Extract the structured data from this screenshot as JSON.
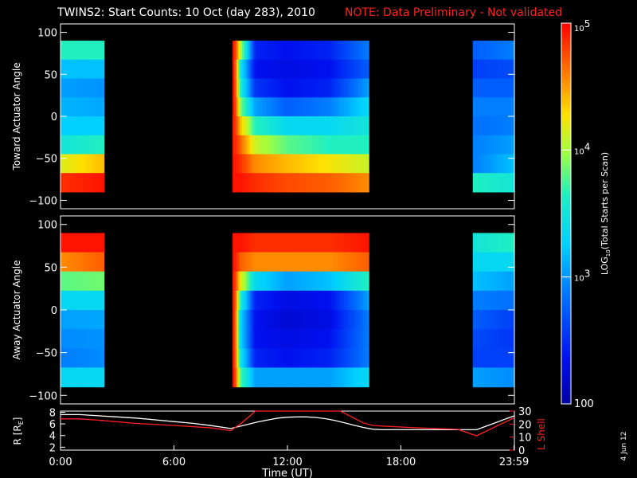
{
  "header": {
    "title": "TWINS2: Start Counts: 10 Oct (day 283), 2010",
    "note": "NOTE: Data Preliminary - Not validated"
  },
  "footer": {
    "date_stamp": "4 Jun 12"
  },
  "chart_data": [
    {
      "type": "heatmap",
      "ylabel": "Toward Actuator Angle",
      "ylim": [
        -110,
        110
      ],
      "yticks": [
        100,
        50,
        0,
        -50,
        -100
      ],
      "data_segments_hours": [
        [
          0,
          2.3
        ],
        [
          9.1,
          16.3
        ],
        [
          21.8,
          24
        ]
      ],
      "profiles": [
        {
          "t": 0.0,
          "v": [
            0.55,
            0.4,
            0.35,
            0.38,
            0.42,
            0.5,
            0.72,
            0.95
          ]
        },
        {
          "t": 2.3,
          "v": [
            0.55,
            0.4,
            0.33,
            0.36,
            0.42,
            0.55,
            0.8,
            0.98
          ]
        },
        {
          "t": 9.2,
          "v": [
            0.98,
            0.98,
            0.98,
            0.98,
            0.97,
            0.97,
            0.98,
            0.98
          ]
        },
        {
          "t": 9.5,
          "v": [
            0.7,
            0.5,
            0.55,
            0.65,
            0.8,
            0.9,
            0.95,
            0.98
          ]
        },
        {
          "t": 10.3,
          "v": [
            0.15,
            0.12,
            0.18,
            0.35,
            0.55,
            0.7,
            0.85,
            0.95
          ]
        },
        {
          "t": 12.0,
          "v": [
            0.12,
            0.1,
            0.12,
            0.25,
            0.45,
            0.6,
            0.8,
            0.92
          ]
        },
        {
          "t": 14.2,
          "v": [
            0.15,
            0.12,
            0.15,
            0.3,
            0.45,
            0.55,
            0.75,
            0.9
          ]
        },
        {
          "t": 16.3,
          "v": [
            0.3,
            0.25,
            0.35,
            0.45,
            0.5,
            0.55,
            0.7,
            0.85
          ]
        },
        {
          "t": 21.8,
          "v": [
            0.25,
            0.2,
            0.25,
            0.3,
            0.28,
            0.3,
            0.3,
            0.55
          ]
        },
        {
          "t": 24.0,
          "v": [
            0.3,
            0.22,
            0.25,
            0.3,
            0.3,
            0.35,
            0.4,
            0.5
          ]
        }
      ]
    },
    {
      "type": "heatmap",
      "ylabel": "Away Actuator Angle",
      "ylim": [
        -110,
        110
      ],
      "yticks": [
        100,
        50,
        0,
        -50,
        -100
      ],
      "data_segments_hours": [
        [
          0,
          2.3
        ],
        [
          9.1,
          16.3
        ],
        [
          21.8,
          24
        ]
      ],
      "profiles": [
        {
          "t": 0.0,
          "v": [
            0.98,
            0.85,
            0.6,
            0.45,
            0.35,
            0.32,
            0.3,
            0.45
          ]
        },
        {
          "t": 2.3,
          "v": [
            0.98,
            0.9,
            0.62,
            0.45,
            0.36,
            0.33,
            0.32,
            0.45
          ]
        },
        {
          "t": 9.2,
          "v": [
            0.98,
            0.98,
            0.97,
            0.97,
            0.97,
            0.97,
            0.97,
            0.98
          ]
        },
        {
          "t": 9.5,
          "v": [
            0.98,
            0.9,
            0.75,
            0.55,
            0.45,
            0.45,
            0.5,
            0.6
          ]
        },
        {
          "t": 10.3,
          "v": [
            0.95,
            0.85,
            0.45,
            0.15,
            0.12,
            0.12,
            0.15,
            0.35
          ]
        },
        {
          "t": 12.0,
          "v": [
            0.95,
            0.85,
            0.35,
            0.1,
            0.08,
            0.1,
            0.12,
            0.35
          ]
        },
        {
          "t": 14.2,
          "v": [
            0.95,
            0.85,
            0.4,
            0.12,
            0.1,
            0.12,
            0.15,
            0.35
          ]
        },
        {
          "t": 16.3,
          "v": [
            0.98,
            0.9,
            0.55,
            0.35,
            0.3,
            0.3,
            0.3,
            0.45
          ]
        },
        {
          "t": 21.8,
          "v": [
            0.5,
            0.45,
            0.4,
            0.3,
            0.25,
            0.22,
            0.2,
            0.35
          ]
        },
        {
          "t": 24.0,
          "v": [
            0.55,
            0.45,
            0.35,
            0.28,
            0.2,
            0.18,
            0.2,
            0.32
          ]
        }
      ]
    },
    {
      "type": "line",
      "xlabel": "Time (UT)",
      "xlim": [
        0,
        24
      ],
      "xticks": [
        0,
        6,
        12,
        18,
        23.983
      ],
      "xtick_labels": [
        "0:00",
        "6:00",
        "12:00",
        "18:00",
        "23:59"
      ],
      "left_axis": {
        "label": "R [R",
        "label_sub": "E",
        "label_end": "]",
        "ylim": [
          1.5,
          8.2
        ],
        "yticks": [
          2,
          4,
          6,
          8
        ]
      },
      "right_axis": {
        "label": "L Shell",
        "ylim": [
          0,
          30
        ],
        "yticks": [
          0,
          10,
          20,
          30
        ],
        "color": "#ff2020"
      },
      "series": [
        {
          "axis": "left",
          "color": "#ffffff",
          "x": [
            0,
            1,
            2,
            3,
            4,
            5,
            6,
            7,
            8,
            9,
            9.5,
            10,
            10.5,
            11,
            11.5,
            12,
            12.5,
            13,
            13.5,
            14,
            14.5,
            15,
            15.5,
            16,
            16.5,
            17,
            18,
            19,
            20,
            21,
            22,
            22.5,
            23,
            23.5,
            24
          ],
          "y": [
            7.6,
            7.6,
            7.4,
            7.2,
            7.0,
            6.7,
            6.4,
            6.1,
            5.7,
            5.2,
            5.6,
            6.0,
            6.4,
            6.7,
            7.0,
            7.15,
            7.2,
            7.2,
            7.1,
            6.9,
            6.6,
            6.2,
            5.8,
            5.4,
            5.1,
            5.0,
            5.0,
            5.0,
            5.0,
            5.0,
            5.0,
            5.6,
            6.2,
            6.8,
            7.4
          ]
        },
        {
          "axis": "right",
          "color": "#ff2020",
          "x": [
            0,
            1,
            2,
            4,
            6,
            8,
            9,
            9.5,
            10,
            10.3,
            14.8,
            15.2,
            16,
            16.5,
            17,
            19,
            21,
            22,
            23,
            24
          ],
          "y": [
            24,
            24,
            23,
            20.5,
            19,
            17,
            15,
            20,
            26,
            31,
            31,
            27,
            21,
            19,
            18.5,
            17,
            16,
            11,
            18,
            25
          ]
        }
      ]
    }
  ],
  "colorbar": {
    "label": "LOG",
    "label_sub": "10",
    "label_end": "(Total Starts per Scan)",
    "range": [
      100,
      100000
    ],
    "ticks": [
      {
        "base": "10",
        "exp": "5",
        "value": 100000
      },
      {
        "base": "10",
        "exp": "4",
        "value": 10000
      },
      {
        "base": "10",
        "exp": "3",
        "value": 1000
      },
      {
        "base": "100",
        "exp": "",
        "value": 100
      }
    ]
  }
}
